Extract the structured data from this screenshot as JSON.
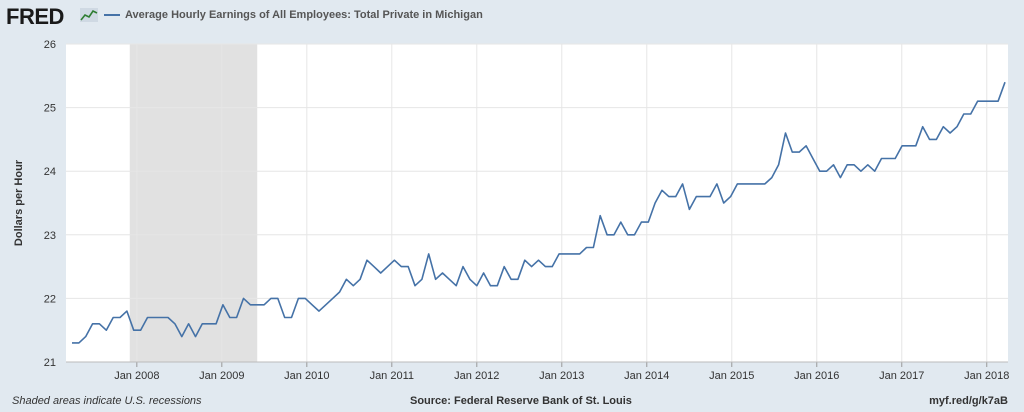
{
  "header": {
    "logo_text": "FRED",
    "series_title": "Average Hourly Earnings of All Employees: Total Private in Michigan"
  },
  "footer": {
    "note": "Shaded areas indicate U.S. recessions",
    "source": "Source: Federal Reserve Bank of St. Louis",
    "link": "myf.red/g/k7aB"
  },
  "chart_data": {
    "type": "line",
    "title": "Average Hourly Earnings of All Employees: Total Private in Michigan",
    "ylabel": "Dollars per Hour",
    "xlabel": "",
    "ylim": [
      21,
      26
    ],
    "yticks": [
      21,
      22,
      23,
      24,
      25,
      26
    ],
    "x_start": "2007-03",
    "x_end": "2018-04",
    "xtick_labels": [
      "Jan 2008",
      "Jan 2009",
      "Jan 2010",
      "Jan 2011",
      "Jan 2012",
      "Jan 2013",
      "Jan 2014",
      "Jan 2015",
      "Jan 2016",
      "Jan 2017",
      "Jan 2018"
    ],
    "xticks": [
      "2008-01",
      "2009-01",
      "2010-01",
      "2011-01",
      "2012-01",
      "2013-01",
      "2014-01",
      "2015-01",
      "2016-01",
      "2017-01",
      "2018-01"
    ],
    "recession": {
      "start": "2007-12",
      "end": "2009-06"
    },
    "grid": true,
    "colors": {
      "line": "#4572a7",
      "recession": "#e1e1e1",
      "grid": "#e6e6e6"
    },
    "series": [
      {
        "name": "Average Hourly Earnings of All Employees: Total Private in Michigan",
        "values": [
          21.3,
          21.3,
          21.4,
          21.6,
          21.6,
          21.5,
          21.7,
          21.7,
          21.8,
          21.5,
          21.5,
          21.7,
          21.7,
          21.7,
          21.7,
          21.6,
          21.4,
          21.6,
          21.4,
          21.6,
          21.6,
          21.6,
          21.9,
          21.7,
          21.7,
          22.0,
          21.9,
          21.9,
          21.9,
          22.0,
          22.0,
          21.7,
          21.7,
          22.0,
          22.0,
          21.9,
          21.8,
          21.9,
          22.0,
          22.1,
          22.3,
          22.2,
          22.3,
          22.6,
          22.5,
          22.4,
          22.5,
          22.6,
          22.5,
          22.5,
          22.2,
          22.3,
          22.7,
          22.3,
          22.4,
          22.3,
          22.2,
          22.5,
          22.3,
          22.2,
          22.4,
          22.2,
          22.2,
          22.5,
          22.3,
          22.3,
          22.6,
          22.5,
          22.6,
          22.5,
          22.5,
          22.7,
          22.7,
          22.7,
          22.7,
          22.8,
          22.8,
          23.3,
          23.0,
          23.0,
          23.2,
          23.0,
          23.0,
          23.2,
          23.2,
          23.5,
          23.7,
          23.6,
          23.6,
          23.8,
          23.4,
          23.6,
          23.6,
          23.6,
          23.8,
          23.5,
          23.6,
          23.8,
          23.8,
          23.8,
          23.8,
          23.8,
          23.9,
          24.1,
          24.6,
          24.3,
          24.3,
          24.4,
          24.2,
          24.0,
          24.0,
          24.1,
          23.9,
          24.1,
          24.1,
          24.0,
          24.1,
          24.0,
          24.2,
          24.2,
          24.2,
          24.4,
          24.4,
          24.4,
          24.7,
          24.5,
          24.5,
          24.7,
          24.6,
          24.7,
          24.9,
          24.9,
          25.1,
          25.1,
          25.1,
          25.1,
          25.4
        ]
      }
    ]
  }
}
